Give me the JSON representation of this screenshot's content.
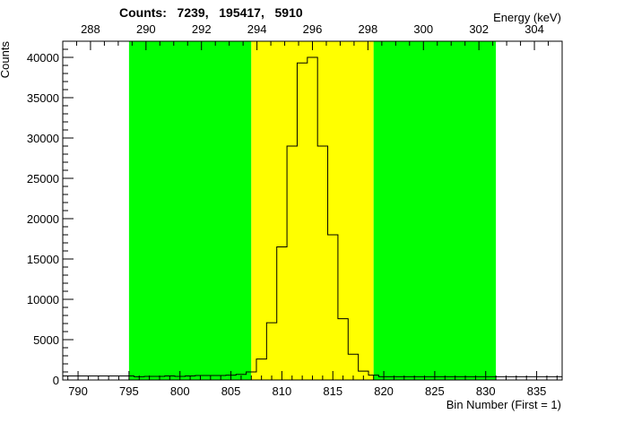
{
  "chart_data": {
    "type": "bar",
    "title": "Counts:   7239,   195417,   5910",
    "xlabel": "Bin Number (First = 1)",
    "ylabel": "Counts",
    "x2label": "Energy (keV)",
    "xlim": [
      788.5,
      837.5
    ],
    "ylim": [
      0,
      42000
    ],
    "x_ticks": [
      790,
      795,
      800,
      805,
      810,
      815,
      820,
      825,
      830,
      835
    ],
    "y_ticks": [
      0,
      5000,
      10000,
      15000,
      20000,
      25000,
      30000,
      35000,
      40000
    ],
    "x2_ticks": [
      288,
      290,
      292,
      294,
      296,
      298,
      300,
      302,
      304
    ],
    "x2_lim": [
      287.0,
      305.0
    ],
    "regions": [
      {
        "name": "left-background",
        "from": 795,
        "to": 807,
        "color": "#00ff00"
      },
      {
        "name": "peak",
        "from": 807,
        "to": 819,
        "color": "#ffff00"
      },
      {
        "name": "right-background",
        "from": 819,
        "to": 831,
        "color": "#00ff00"
      }
    ],
    "series": [
      {
        "bin_edges": [
          788.5,
          789.5,
          790.5,
          791.5,
          792.5,
          793.5,
          794.5,
          795.5,
          796.5,
          797.5,
          798.5,
          799.5,
          800.5,
          801.5,
          802.5,
          803.5,
          804.5,
          805.5,
          806.5,
          807.5,
          808.5,
          809.5,
          810.5,
          811.5,
          812.5,
          813.5,
          814.5,
          815.5,
          816.5,
          817.5,
          818.5,
          819.5,
          820.5,
          821.5,
          822.5,
          823.5,
          824.5,
          825.5,
          826.5,
          827.5,
          828.5,
          829.5,
          830.5,
          831.5,
          832.5,
          833.5,
          834.5,
          835.5,
          836.5,
          837.5
        ],
        "values": [
          500,
          500,
          500,
          500,
          500,
          500,
          500,
          400,
          450,
          450,
          500,
          450,
          500,
          550,
          550,
          550,
          600,
          700,
          1000,
          2600,
          7100,
          16500,
          29000,
          39300,
          40000,
          29000,
          18000,
          7600,
          3200,
          1100,
          600,
          400,
          400,
          400,
          400,
          400,
          400,
          400,
          400,
          400,
          400,
          400,
          400,
          400,
          400,
          400,
          400,
          400,
          400
        ]
      }
    ]
  }
}
